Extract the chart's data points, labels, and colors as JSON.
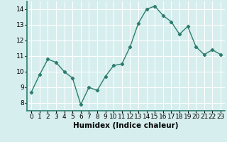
{
  "x": [
    0,
    1,
    2,
    3,
    4,
    5,
    6,
    7,
    8,
    9,
    10,
    11,
    12,
    13,
    14,
    15,
    16,
    17,
    18,
    19,
    20,
    21,
    22,
    23
  ],
  "y": [
    8.7,
    9.8,
    10.8,
    10.6,
    10.0,
    9.6,
    7.9,
    9.0,
    8.8,
    9.7,
    10.4,
    10.5,
    11.6,
    13.1,
    14.0,
    14.2,
    13.6,
    13.2,
    12.4,
    12.9,
    11.6,
    11.1,
    11.4,
    11.1
  ],
  "xlabel": "Humidex (Indice chaleur)",
  "ylim": [
    7.5,
    14.5
  ],
  "xlim": [
    -0.5,
    23.5
  ],
  "yticks": [
    8,
    9,
    10,
    11,
    12,
    13,
    14
  ],
  "xticks": [
    0,
    1,
    2,
    3,
    4,
    5,
    6,
    7,
    8,
    9,
    10,
    11,
    12,
    13,
    14,
    15,
    16,
    17,
    18,
    19,
    20,
    21,
    22,
    23
  ],
  "line_color": "#2e7d6e",
  "marker": "D",
  "marker_size": 2.2,
  "line_width": 1.0,
  "bg_color": "#d6eeee",
  "grid_color": "#ffffff",
  "tick_label_fontsize": 6.5,
  "xlabel_fontsize": 7.5
}
